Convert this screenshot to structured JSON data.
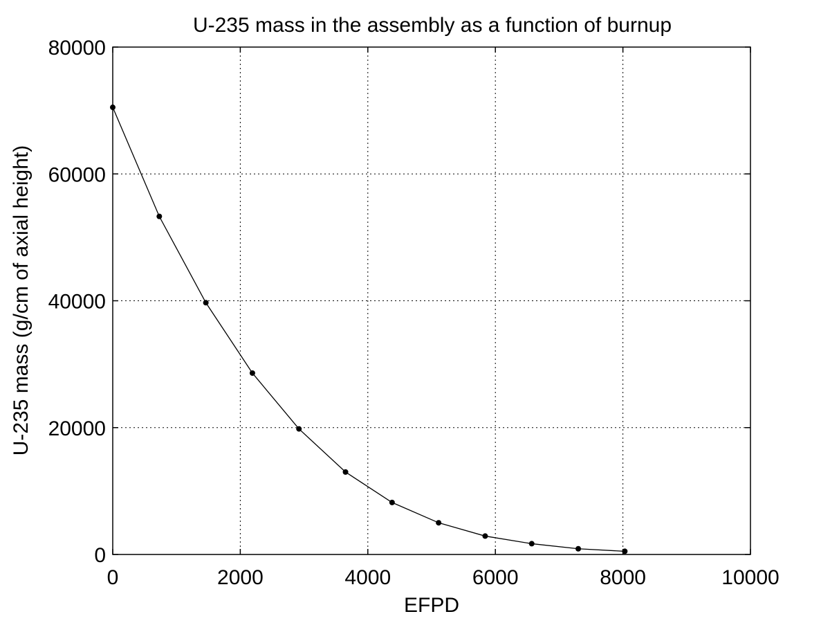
{
  "chart_data": {
    "type": "line",
    "title": "U-235 mass in the assembly as a function of burnup",
    "xlabel": "EFPD",
    "ylabel": "U-235 mass (g/cm of axial height)",
    "xlim": [
      0,
      10000
    ],
    "ylim": [
      0,
      80000
    ],
    "x_ticks": [
      0,
      2000,
      4000,
      6000,
      8000,
      10000
    ],
    "y_ticks": [
      0,
      20000,
      40000,
      60000,
      80000
    ],
    "x_tick_labels": [
      "0",
      "2000",
      "4000",
      "6000",
      "8000",
      "10000"
    ],
    "y_tick_labels": [
      "0",
      "20000",
      "40000",
      "60000",
      "80000"
    ],
    "grid": true,
    "series": [
      {
        "color": "#000000",
        "marker": "dot",
        "x": [
          0,
          730,
          1460,
          2190,
          2920,
          3650,
          4380,
          5110,
          5840,
          6570,
          7300,
          8030
        ],
        "y": [
          70500,
          53300,
          39700,
          28600,
          19800,
          13000,
          8200,
          5000,
          2900,
          1700,
          900,
          500
        ]
      }
    ]
  }
}
